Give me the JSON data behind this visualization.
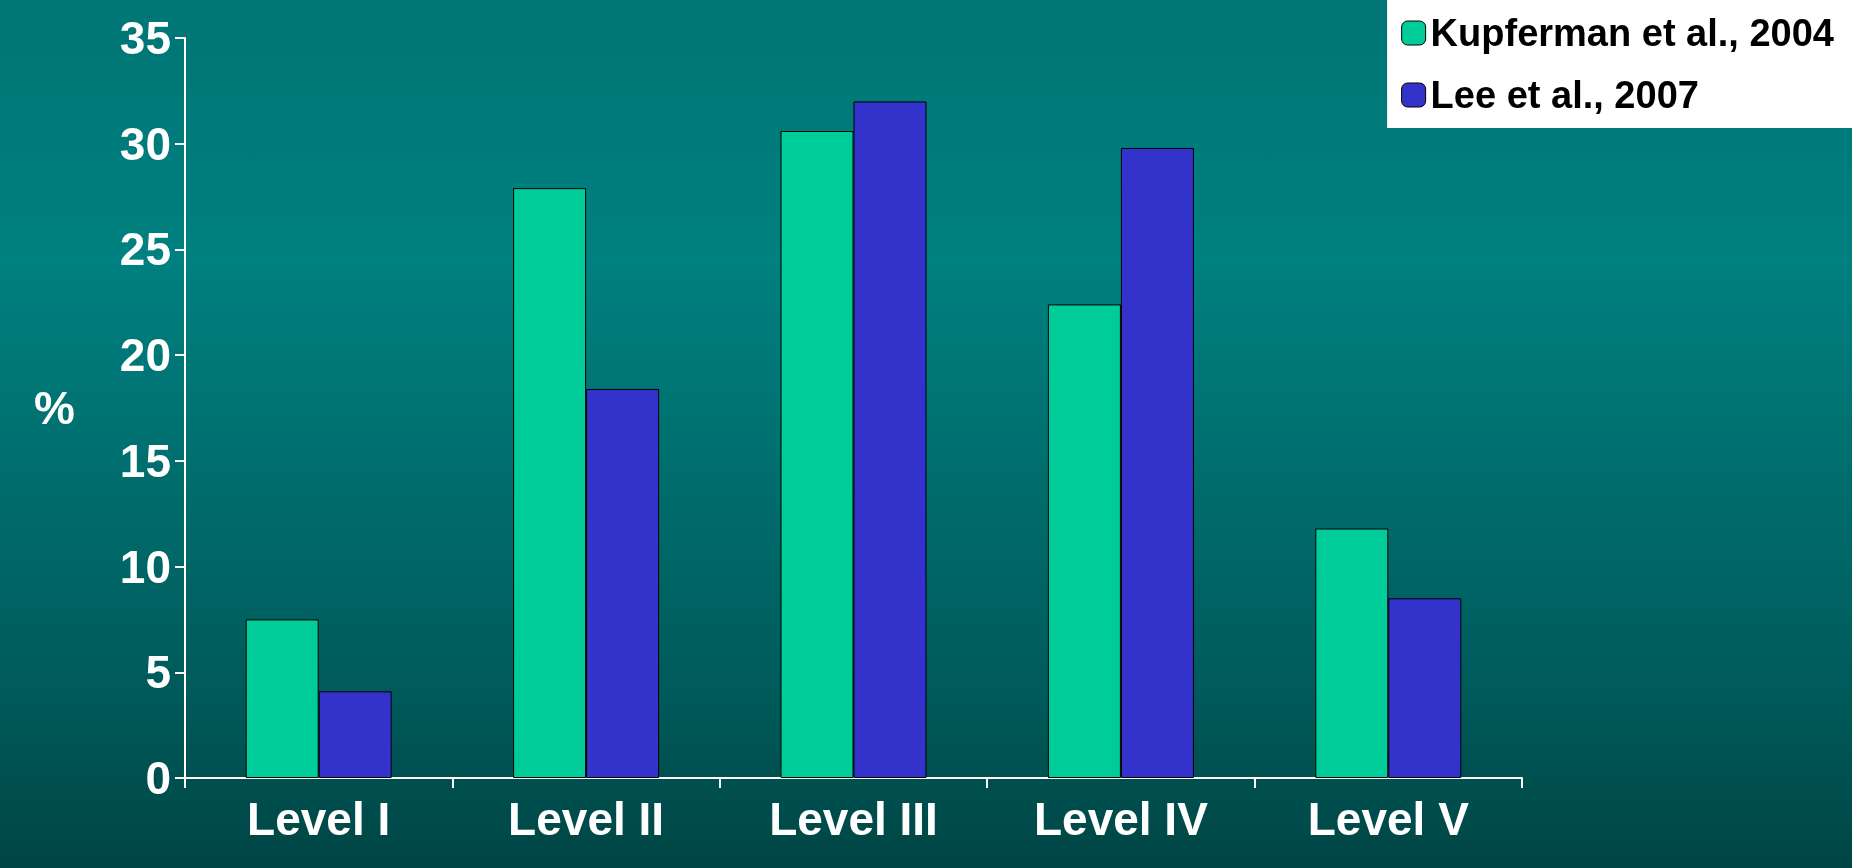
{
  "chart_data": {
    "type": "bar",
    "ylabel": "%",
    "categories": [
      "Level I",
      "Level II",
      "Level III",
      "Level IV",
      "Level V"
    ],
    "series": [
      {
        "name": "Kupferman et al., 2004",
        "color": "#00cc99",
        "values": [
          7.5,
          27.9,
          30.6,
          22.4,
          11.8
        ]
      },
      {
        "name": "Lee et al., 2007",
        "color": "#3333cc",
        "values": [
          4.1,
          18.4,
          32.0,
          29.8,
          8.5
        ]
      }
    ],
    "ylim": [
      0,
      35
    ],
    "yticks": [
      0,
      5,
      10,
      15,
      20,
      25,
      30,
      35
    ],
    "grid": false,
    "legend": "top right"
  }
}
